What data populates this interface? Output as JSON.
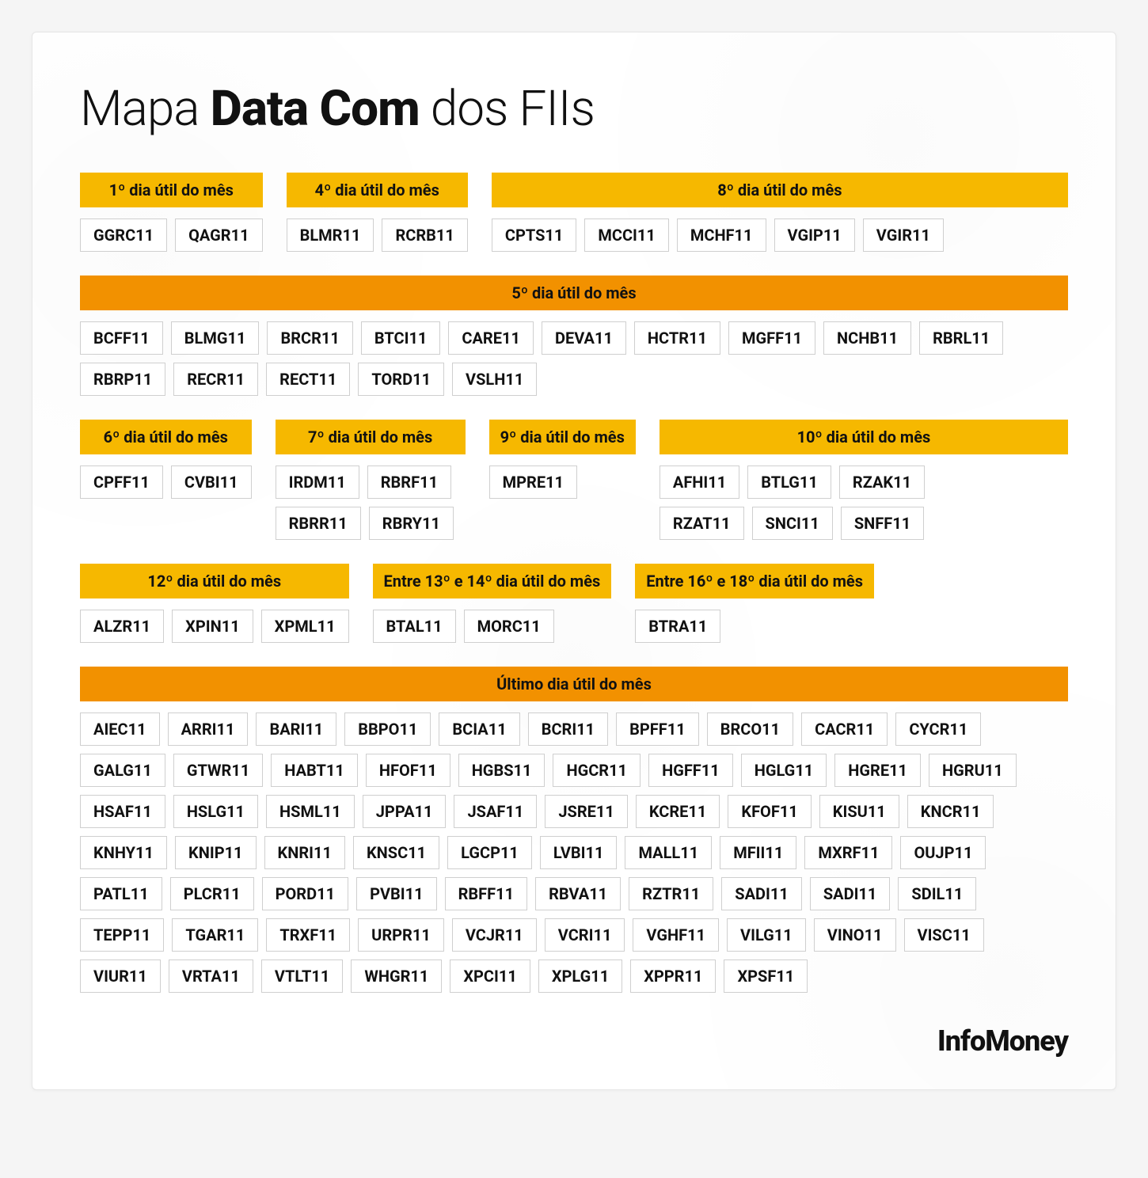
{
  "title_prefix": "Mapa ",
  "title_bold": "Data Com",
  "title_suffix": " dos FIIs",
  "footer_brand": "InfoMoney",
  "colors": {
    "header_yellow": "#f6b800",
    "header_orange": "#f29100",
    "ticker_border": "#cfcfcf",
    "text": "#111111",
    "card_bg": "#ffffff"
  },
  "rows": [
    {
      "groups": [
        {
          "label": "1º dia útil do mês",
          "style": "yellow",
          "tickers": [
            "GGRC11",
            "QAGR11"
          ]
        },
        {
          "label": "4º dia útil do mês",
          "style": "yellow",
          "tickers": [
            "BLMR11",
            "RCRB11"
          ]
        },
        {
          "label": "8º dia útil do mês",
          "style": "yellow",
          "grow": true,
          "tickers": [
            "CPTS11",
            "MCCI11",
            "MCHF11",
            "VGIP11",
            "VGIR11"
          ]
        }
      ]
    },
    {
      "groups": [
        {
          "label": "5º dia útil do mês",
          "style": "orange",
          "full": true,
          "tickers": [
            "BCFF11",
            "BLMG11",
            "BRCR11",
            "BTCI11",
            "CARE11",
            "DEVA11",
            "HCTR11",
            "MGFF11",
            "NCHB11",
            "RBRL11",
            "RBRP11",
            "RECR11",
            "RECT11",
            "TORD11",
            "VSLH11"
          ]
        }
      ]
    },
    {
      "groups": [
        {
          "label": "6º dia útil do mês",
          "style": "yellow",
          "tickers": [
            "CPFF11",
            "CVBI11"
          ]
        },
        {
          "label": "7º dia útil do mês",
          "style": "yellow",
          "tickers": [
            "IRDM11",
            "RBRF11",
            "RBRR11",
            "RBRY11"
          ],
          "wrap2": true
        },
        {
          "label": "9º dia útil do mês",
          "style": "yellow",
          "tickers": [
            "MPRE11"
          ]
        },
        {
          "label": "10º dia útil do mês",
          "style": "yellow",
          "grow": true,
          "tickers": [
            "AFHI11",
            "BTLG11",
            "RZAK11",
            "RZAT11",
            "SNCI11",
            "SNFF11"
          ],
          "wrap3": true
        }
      ]
    },
    {
      "groups": [
        {
          "label": "12º dia útil do mês",
          "style": "yellow",
          "tickers": [
            "ALZR11",
            "XPIN11",
            "XPML11"
          ]
        },
        {
          "label": "Entre 13º e 14º dia útil do mês",
          "style": "yellow",
          "tickers": [
            "BTAL11",
            "MORC11"
          ]
        },
        {
          "label": "Entre 16º e 18º dia útil do mês",
          "style": "yellow",
          "tickers": [
            "BTRA11"
          ]
        }
      ]
    },
    {
      "groups": [
        {
          "label": "Último dia útil do mês",
          "style": "orange",
          "full": true,
          "tickers": [
            "AIEC11",
            "ARRI11",
            "BARI11",
            "BBPO11",
            "BCIA11",
            "BCRI11",
            "BPFF11",
            "BRCO11",
            "CACR11",
            "CYCR11",
            "GALG11",
            "GTWR11",
            "HABT11",
            "HFOF11",
            "HGBS11",
            "HGCR11",
            "HGFF11",
            "HGLG11",
            "HGRE11",
            "HGRU11",
            "HSAF11",
            "HSLG11",
            "HSML11",
            "JPPA11",
            "JSAF11",
            "JSRE11",
            "KCRE11",
            "KFOF11",
            "KISU11",
            "KNCR11",
            "KNHY11",
            "KNIP11",
            "KNRI11",
            "KNSC11",
            "LGCP11",
            "LVBI11",
            "MALL11",
            "MFII11",
            "MXRF11",
            "OUJP11",
            "PATL11",
            "PLCR11",
            "PORD11",
            "PVBI11",
            "RBFF11",
            "RBVA11",
            "RZTR11",
            "SADI11",
            "SADI11",
            "SDIL11",
            "TEPP11",
            "TGAR11",
            "TRXF11",
            "URPR11",
            "VCJR11",
            "VCRI11",
            "VGHF11",
            "VILG11",
            "VINO11",
            "VISC11",
            "VIUR11",
            "VRTA11",
            "VTLT11",
            "WHGR11",
            "XPCI11",
            "XPLG11",
            "XPPR11",
            "XPSF11"
          ]
        }
      ]
    }
  ]
}
